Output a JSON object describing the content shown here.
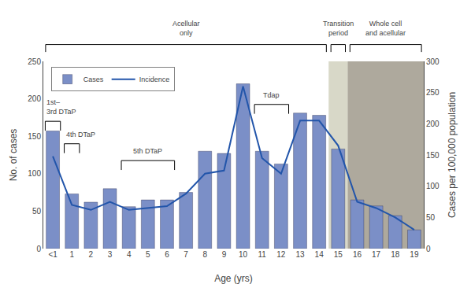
{
  "chart_data": {
    "type": "bar",
    "categories": [
      "<1",
      "1",
      "2",
      "3",
      "4",
      "5",
      "6",
      "7",
      "8",
      "9",
      "10",
      "11",
      "12",
      "13",
      "14",
      "15",
      "16",
      "17",
      "18",
      "19"
    ],
    "series": [
      {
        "name": "Cases",
        "type": "bar",
        "color": "#7b8fc7",
        "values": [
          157,
          73,
          62,
          80,
          56,
          65,
          65,
          75,
          130,
          127,
          220,
          130,
          113,
          181,
          178,
          133,
          65,
          57,
          44,
          25
        ]
      },
      {
        "name": "Incidence",
        "type": "line",
        "color": "#2255aa",
        "axis": "y2",
        "values": [
          148,
          70,
          62,
          75,
          62,
          65,
          68,
          88,
          120,
          125,
          260,
          145,
          120,
          205,
          205,
          165,
          75,
          65,
          50,
          30
        ]
      }
    ],
    "xlabel": "Age (yrs)",
    "ylabel": "No. of cases",
    "y2label": "Cases per 100,000 population",
    "ylim": [
      0,
      250
    ],
    "yticks": [
      0,
      50,
      100,
      150,
      200,
      250
    ],
    "y2lim": [
      0,
      300
    ],
    "y2ticks": [
      0,
      50,
      100,
      150,
      200,
      250,
      300
    ],
    "legend": "upper left",
    "grid": false,
    "periods": [
      {
        "text": "Acellular\nonly",
        "from": "<1",
        "to": "14"
      },
      {
        "text": "Transition\nperiod",
        "from": "15",
        "to": "15",
        "color": "#c8c8b0"
      },
      {
        "text": "Whole cell\nand acellular",
        "from": "16",
        "to": "19",
        "color": "#8b8474"
      }
    ],
    "annotations": [
      {
        "text": "1st–\n3rd DTaP",
        "from": "<1",
        "to": "<1"
      },
      {
        "text": "4th DTaP",
        "from": "1",
        "to": "1"
      },
      {
        "text": "5th DTaP",
        "from": "4",
        "to": "6"
      },
      {
        "text": "Tdap",
        "from": "11",
        "to": "12"
      }
    ]
  }
}
